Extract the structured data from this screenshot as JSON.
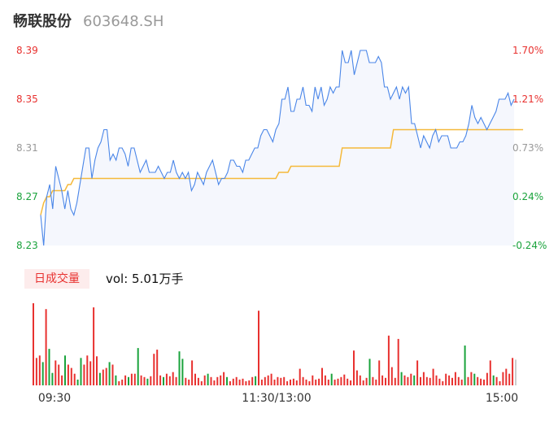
{
  "header": {
    "name": "畅联股份",
    "code": "603648.SH"
  },
  "colors": {
    "price": "#4a86e8",
    "avg": "#f5b93a",
    "up": "#e8312f",
    "down": "#1aa33c",
    "flat": "#999999"
  },
  "chart_data": {
    "type": "line",
    "y_left_ticks": [
      "8.39",
      "8.35",
      "8.31",
      "8.27",
      "8.23"
    ],
    "y_right_ticks": [
      "1.70%",
      "1.21%",
      "0.73%",
      "0.24%",
      "-0.24%"
    ],
    "y_range": [
      8.23,
      8.39
    ],
    "x_ticks": [
      "09:30",
      "11:30/13:00",
      "15:00"
    ],
    "price": [
      8.255,
      8.23,
      8.27,
      8.28,
      8.26,
      8.295,
      8.285,
      8.275,
      8.26,
      8.275,
      8.26,
      8.255,
      8.265,
      8.28,
      8.295,
      8.31,
      8.31,
      8.285,
      8.3,
      8.31,
      8.315,
      8.325,
      8.325,
      8.3,
      8.305,
      8.3,
      8.31,
      8.31,
      8.305,
      8.295,
      8.31,
      8.31,
      8.3,
      8.29,
      8.295,
      8.3,
      8.29,
      8.29,
      8.29,
      8.295,
      8.29,
      8.285,
      8.29,
      8.29,
      8.3,
      8.29,
      8.285,
      8.29,
      8.285,
      8.29,
      8.275,
      8.28,
      8.29,
      8.285,
      8.28,
      8.29,
      8.295,
      8.3,
      8.29,
      8.28,
      8.285,
      8.285,
      8.29,
      8.3,
      8.3,
      8.295,
      8.295,
      8.29,
      8.3,
      8.3,
      8.305,
      8.31,
      8.31,
      8.32,
      8.325,
      8.325,
      8.32,
      8.315,
      8.325,
      8.33,
      8.35,
      8.35,
      8.36,
      8.34,
      8.34,
      8.35,
      8.35,
      8.36,
      8.345,
      8.345,
      8.34,
      8.36,
      8.35,
      8.36,
      8.345,
      8.35,
      8.36,
      8.355,
      8.36,
      8.36,
      8.39,
      8.38,
      8.38,
      8.39,
      8.37,
      8.38,
      8.39,
      8.39,
      8.39,
      8.38,
      8.38,
      8.38,
      8.385,
      8.38,
      8.36,
      8.36,
      8.35,
      8.355,
      8.36,
      8.35,
      8.36,
      8.355,
      8.36,
      8.33,
      8.33,
      8.32,
      8.31,
      8.32,
      8.315,
      8.31,
      8.32,
      8.325,
      8.315,
      8.32,
      8.32,
      8.32,
      8.31,
      8.31,
      8.31,
      8.315,
      8.315,
      8.32,
      8.33,
      8.345,
      8.335,
      8.33,
      8.335,
      8.33,
      8.325,
      8.33,
      8.335,
      8.34,
      8.35,
      8.35,
      8.35,
      8.355,
      8.345,
      8.35
    ],
    "avg": [
      8.255,
      8.265,
      8.27,
      8.27,
      8.275,
      8.275,
      8.275,
      8.275,
      8.275,
      8.28,
      8.28,
      8.285,
      8.285,
      8.285,
      8.285,
      8.285,
      8.285,
      8.285,
      8.285,
      8.285,
      8.285,
      8.285,
      8.285,
      8.285,
      8.285,
      8.285,
      8.285,
      8.285,
      8.285,
      8.285,
      8.285,
      8.285,
      8.285,
      8.285,
      8.285,
      8.285,
      8.285,
      8.285,
      8.285,
      8.285,
      8.285,
      8.285,
      8.285,
      8.285,
      8.285,
      8.285,
      8.285,
      8.285,
      8.285,
      8.285,
      8.285,
      8.285,
      8.285,
      8.285,
      8.285,
      8.285,
      8.285,
      8.285,
      8.285,
      8.285,
      8.285,
      8.285,
      8.285,
      8.285,
      8.285,
      8.285,
      8.285,
      8.285,
      8.285,
      8.285,
      8.285,
      8.285,
      8.285,
      8.285,
      8.285,
      8.285,
      8.285,
      8.285,
      8.285,
      8.29,
      8.29,
      8.29,
      8.29,
      8.295,
      8.295,
      8.295,
      8.295,
      8.295,
      8.295,
      8.295,
      8.295,
      8.295,
      8.295,
      8.295,
      8.295,
      8.295,
      8.295,
      8.295,
      8.295,
      8.295,
      8.31,
      8.31,
      8.31,
      8.31,
      8.31,
      8.31,
      8.31,
      8.31,
      8.31,
      8.31,
      8.31,
      8.31,
      8.31,
      8.31,
      8.31,
      8.31,
      8.31,
      8.325,
      8.325,
      8.325,
      8.325,
      8.325,
      8.325,
      8.325,
      8.325,
      8.325,
      8.325,
      8.325,
      8.325,
      8.325,
      8.325,
      8.325,
      8.325,
      8.325,
      8.325,
      8.325,
      8.325,
      8.325,
      8.325,
      8.325,
      8.325,
      8.325,
      8.325,
      8.325,
      8.325,
      8.325,
      8.325,
      8.325,
      8.325,
      8.325,
      8.325,
      8.325,
      8.325,
      8.325,
      8.325,
      8.325,
      8.325,
      8.325,
      8.325,
      8.325,
      8.325
    ]
  },
  "volume": {
    "tag": "日成交量",
    "label": "vol: 5.01万手",
    "bars": [
      {
        "v": 0.99,
        "c": "up"
      },
      {
        "v": 0.33,
        "c": "up"
      },
      {
        "v": 0.36,
        "c": "up"
      },
      {
        "v": 0.28,
        "c": "down"
      },
      {
        "v": 0.92,
        "c": "up"
      },
      {
        "v": 0.44,
        "c": "down"
      },
      {
        "v": 0.15,
        "c": "down"
      },
      {
        "v": 0.3,
        "c": "up"
      },
      {
        "v": 0.25,
        "c": "up"
      },
      {
        "v": 0.12,
        "c": "up"
      },
      {
        "v": 0.36,
        "c": "down"
      },
      {
        "v": 0.25,
        "c": "up"
      },
      {
        "v": 0.21,
        "c": "up"
      },
      {
        "v": 0.14,
        "c": "up"
      },
      {
        "v": 0.07,
        "c": "down"
      },
      {
        "v": 0.33,
        "c": "down"
      },
      {
        "v": 0.25,
        "c": "up"
      },
      {
        "v": 0.36,
        "c": "up"
      },
      {
        "v": 0.29,
        "c": "up"
      },
      {
        "v": 0.94,
        "c": "up"
      },
      {
        "v": 0.35,
        "c": "up"
      },
      {
        "v": 0.15,
        "c": "down"
      },
      {
        "v": 0.19,
        "c": "up"
      },
      {
        "v": 0.21,
        "c": "up"
      },
      {
        "v": 0.28,
        "c": "down"
      },
      {
        "v": 0.25,
        "c": "up"
      },
      {
        "v": 0.12,
        "c": "down"
      },
      {
        "v": 0.05,
        "c": "up"
      },
      {
        "v": 0.07,
        "c": "up"
      },
      {
        "v": 0.12,
        "c": "up"
      },
      {
        "v": 0.1,
        "c": "down"
      },
      {
        "v": 0.14,
        "c": "up"
      },
      {
        "v": 0.14,
        "c": "up"
      },
      {
        "v": 0.45,
        "c": "down"
      },
      {
        "v": 0.12,
        "c": "up"
      },
      {
        "v": 0.1,
        "c": "up"
      },
      {
        "v": 0.08,
        "c": "down"
      },
      {
        "v": 0.11,
        "c": "up"
      },
      {
        "v": 0.38,
        "c": "up"
      },
      {
        "v": 0.43,
        "c": "up"
      },
      {
        "v": 0.12,
        "c": "up"
      },
      {
        "v": 0.1,
        "c": "down"
      },
      {
        "v": 0.14,
        "c": "up"
      },
      {
        "v": 0.11,
        "c": "up"
      },
      {
        "v": 0.16,
        "c": "up"
      },
      {
        "v": 0.1,
        "c": "up"
      },
      {
        "v": 0.41,
        "c": "down"
      },
      {
        "v": 0.32,
        "c": "down"
      },
      {
        "v": 0.09,
        "c": "up"
      },
      {
        "v": 0.07,
        "c": "up"
      },
      {
        "v": 0.3,
        "c": "up"
      },
      {
        "v": 0.14,
        "c": "up"
      },
      {
        "v": 0.09,
        "c": "up"
      },
      {
        "v": 0.05,
        "c": "up"
      },
      {
        "v": 0.12,
        "c": "up"
      },
      {
        "v": 0.14,
        "c": "down"
      },
      {
        "v": 0.1,
        "c": "up"
      },
      {
        "v": 0.06,
        "c": "up"
      },
      {
        "v": 0.1,
        "c": "up"
      },
      {
        "v": 0.12,
        "c": "up"
      },
      {
        "v": 0.16,
        "c": "up"
      },
      {
        "v": 0.1,
        "c": "down"
      },
      {
        "v": 0.05,
        "c": "up"
      },
      {
        "v": 0.08,
        "c": "up"
      },
      {
        "v": 0.1,
        "c": "up"
      },
      {
        "v": 0.07,
        "c": "up"
      },
      {
        "v": 0.08,
        "c": "up"
      },
      {
        "v": 0.05,
        "c": "up"
      },
      {
        "v": 0.06,
        "c": "up"
      },
      {
        "v": 0.1,
        "c": "up"
      },
      {
        "v": 0.11,
        "c": "down"
      },
      {
        "v": 0.9,
        "c": "up"
      },
      {
        "v": 0.07,
        "c": "up"
      },
      {
        "v": 0.1,
        "c": "up"
      },
      {
        "v": 0.12,
        "c": "up"
      },
      {
        "v": 0.14,
        "c": "up"
      },
      {
        "v": 0.07,
        "c": "up"
      },
      {
        "v": 0.1,
        "c": "up"
      },
      {
        "v": 0.09,
        "c": "up"
      },
      {
        "v": 0.1,
        "c": "up"
      },
      {
        "v": 0.05,
        "c": "up"
      },
      {
        "v": 0.07,
        "c": "up"
      },
      {
        "v": 0.08,
        "c": "up"
      },
      {
        "v": 0.06,
        "c": "up"
      },
      {
        "v": 0.2,
        "c": "up"
      },
      {
        "v": 0.1,
        "c": "up"
      },
      {
        "v": 0.07,
        "c": "up"
      },
      {
        "v": 0.05,
        "c": "up"
      },
      {
        "v": 0.12,
        "c": "up"
      },
      {
        "v": 0.07,
        "c": "up"
      },
      {
        "v": 0.08,
        "c": "up"
      },
      {
        "v": 0.21,
        "c": "up"
      },
      {
        "v": 0.12,
        "c": "up"
      },
      {
        "v": 0.07,
        "c": "up"
      },
      {
        "v": 0.14,
        "c": "down"
      },
      {
        "v": 0.07,
        "c": "up"
      },
      {
        "v": 0.08,
        "c": "up"
      },
      {
        "v": 0.1,
        "c": "up"
      },
      {
        "v": 0.13,
        "c": "up"
      },
      {
        "v": 0.08,
        "c": "up"
      },
      {
        "v": 0.06,
        "c": "up"
      },
      {
        "v": 0.42,
        "c": "up"
      },
      {
        "v": 0.18,
        "c": "up"
      },
      {
        "v": 0.12,
        "c": "up"
      },
      {
        "v": 0.06,
        "c": "up"
      },
      {
        "v": 0.09,
        "c": "up"
      },
      {
        "v": 0.32,
        "c": "down"
      },
      {
        "v": 0.1,
        "c": "up"
      },
      {
        "v": 0.07,
        "c": "up"
      },
      {
        "v": 0.3,
        "c": "up"
      },
      {
        "v": 0.12,
        "c": "up"
      },
      {
        "v": 0.09,
        "c": "up"
      },
      {
        "v": 0.6,
        "c": "up"
      },
      {
        "v": 0.22,
        "c": "up"
      },
      {
        "v": 0.09,
        "c": "up"
      },
      {
        "v": 0.56,
        "c": "up"
      },
      {
        "v": 0.16,
        "c": "down"
      },
      {
        "v": 0.12,
        "c": "up"
      },
      {
        "v": 0.1,
        "c": "up"
      },
      {
        "v": 0.14,
        "c": "up"
      },
      {
        "v": 0.12,
        "c": "down"
      },
      {
        "v": 0.3,
        "c": "up"
      },
      {
        "v": 0.1,
        "c": "up"
      },
      {
        "v": 0.16,
        "c": "up"
      },
      {
        "v": 0.1,
        "c": "up"
      },
      {
        "v": 0.09,
        "c": "up"
      },
      {
        "v": 0.2,
        "c": "up"
      },
      {
        "v": 0.12,
        "c": "up"
      },
      {
        "v": 0.08,
        "c": "up"
      },
      {
        "v": 0.05,
        "c": "up"
      },
      {
        "v": 0.14,
        "c": "up"
      },
      {
        "v": 0.12,
        "c": "up"
      },
      {
        "v": 0.09,
        "c": "up"
      },
      {
        "v": 0.16,
        "c": "up"
      },
      {
        "v": 0.1,
        "c": "up"
      },
      {
        "v": 0.07,
        "c": "up"
      },
      {
        "v": 0.48,
        "c": "down"
      },
      {
        "v": 0.1,
        "c": "up"
      },
      {
        "v": 0.16,
        "c": "up"
      },
      {
        "v": 0.14,
        "c": "down"
      },
      {
        "v": 0.1,
        "c": "up"
      },
      {
        "v": 0.08,
        "c": "up"
      },
      {
        "v": 0.07,
        "c": "up"
      },
      {
        "v": 0.15,
        "c": "up"
      },
      {
        "v": 0.3,
        "c": "up"
      },
      {
        "v": 0.12,
        "c": "down"
      },
      {
        "v": 0.1,
        "c": "up"
      },
      {
        "v": 0.05,
        "c": "up"
      },
      {
        "v": 0.16,
        "c": "up"
      },
      {
        "v": 0.2,
        "c": "up"
      },
      {
        "v": 0.14,
        "c": "up"
      },
      {
        "v": 0.33,
        "c": "up"
      },
      {
        "v": 0.31,
        "c": "flat"
      }
    ]
  }
}
